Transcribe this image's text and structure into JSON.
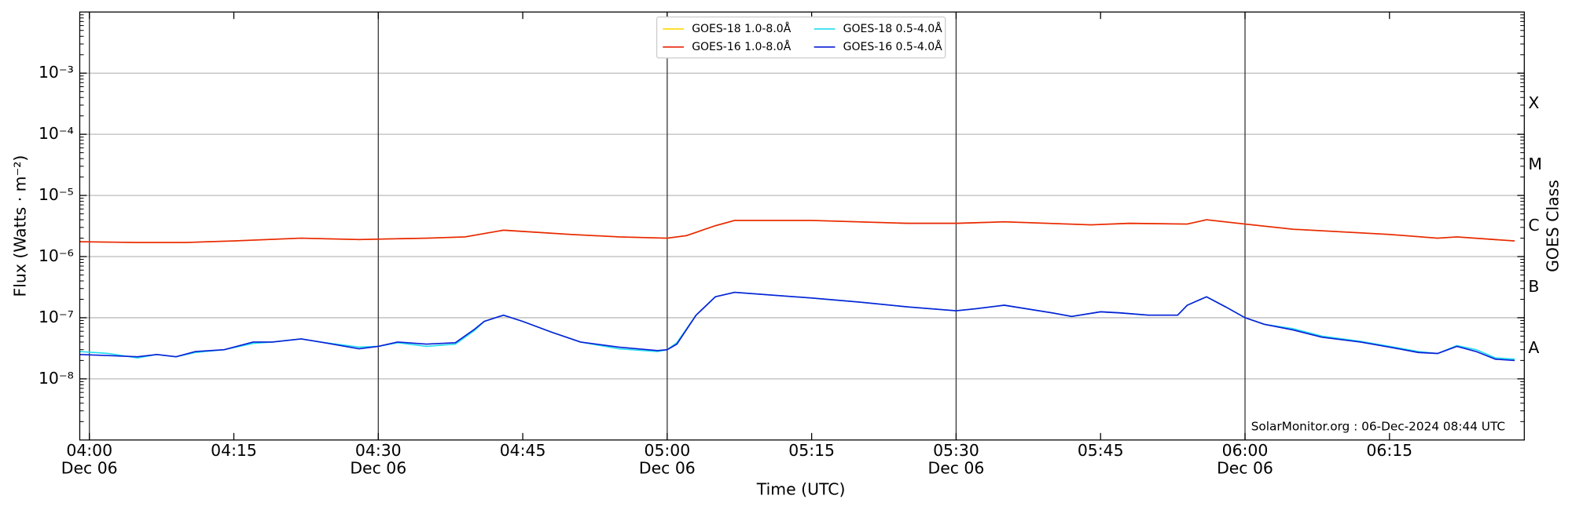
{
  "chart_data": {
    "type": "line",
    "xlabel": "Time (UTC)",
    "ylabel": "Flux (Watts · m⁻²)",
    "y2label": "GOES Class",
    "annotation": "SolarMonitor.org : 06-Dec-2024 08:44 UTC",
    "log_y": true,
    "grid": true,
    "legend": "upper center",
    "xlim": [
      "03:59",
      "06:29"
    ],
    "ylim": [
      1e-09,
      0.01
    ],
    "xticks": [
      {
        "value": "04:00",
        "label": "04:00",
        "date": "Dec 06"
      },
      {
        "value": "04:15",
        "label": "04:15"
      },
      {
        "value": "04:30",
        "label": "04:30",
        "date": "Dec 06"
      },
      {
        "value": "04:45",
        "label": "04:45"
      },
      {
        "value": "05:00",
        "label": "05:00",
        "date": "Dec 06"
      },
      {
        "value": "05:15",
        "label": "05:15"
      },
      {
        "value": "05:30",
        "label": "05:30",
        "date": "Dec 06"
      },
      {
        "value": "05:45",
        "label": "05:45"
      },
      {
        "value": "06:00",
        "label": "06:00",
        "date": "Dec 06"
      },
      {
        "value": "06:15",
        "label": "06:15"
      }
    ],
    "yticks": [
      {
        "value": 1e-08,
        "label": "10⁻⁸"
      },
      {
        "value": 1e-07,
        "label": "10⁻⁷"
      },
      {
        "value": 1e-06,
        "label": "10⁻⁶"
      },
      {
        "value": 1e-05,
        "label": "10⁻⁵"
      },
      {
        "value": 0.0001,
        "label": "10⁻⁴"
      },
      {
        "value": 0.001,
        "label": "10⁻³"
      }
    ],
    "classes": [
      {
        "value": 3.16e-08,
        "label": "A"
      },
      {
        "value": 3.16e-07,
        "label": "B"
      },
      {
        "value": 3.16e-06,
        "label": "C"
      },
      {
        "value": 3.16e-05,
        "label": "M"
      },
      {
        "value": 0.000316,
        "label": "X"
      }
    ],
    "series": [
      {
        "name": "GOES-18 1.0-8.0Å",
        "color": "#ffd700",
        "x": [
          "03:59",
          "04:05",
          "04:10",
          "04:15",
          "04:22",
          "04:28",
          "04:35",
          "04:39",
          "04:43",
          "04:50",
          "04:55",
          "05:00",
          "05:02",
          "05:05",
          "05:07",
          "05:15",
          "05:25",
          "05:30",
          "05:35",
          "05:44",
          "05:48",
          "05:54",
          "05:56",
          "06:00",
          "06:05",
          "06:15",
          "06:20",
          "06:22",
          "06:28"
        ],
        "values": [
          1.75e-06,
          1.7e-06,
          1.7e-06,
          1.8e-06,
          2e-06,
          1.9e-06,
          2e-06,
          2.1e-06,
          2.7e-06,
          2.3e-06,
          2.1e-06,
          2e-06,
          2.2e-06,
          3.2e-06,
          3.9e-06,
          3.9e-06,
          3.5e-06,
          3.5e-06,
          3.7e-06,
          3.3e-06,
          3.5e-06,
          3.4e-06,
          4e-06,
          3.4e-06,
          2.8e-06,
          2.3e-06,
          2e-06,
          2.1e-06,
          1.8e-06
        ]
      },
      {
        "name": "GOES-16 1.0-8.0Å",
        "color": "#e8250c",
        "x": [
          "03:59",
          "04:05",
          "04:10",
          "04:15",
          "04:22",
          "04:28",
          "04:35",
          "04:39",
          "04:43",
          "04:50",
          "04:55",
          "05:00",
          "05:02",
          "05:05",
          "05:07",
          "05:15",
          "05:25",
          "05:30",
          "05:35",
          "05:44",
          "05:48",
          "05:54",
          "05:56",
          "06:00",
          "06:05",
          "06:15",
          "06:20",
          "06:22",
          "06:28"
        ],
        "values": [
          1.75e-06,
          1.7e-06,
          1.7e-06,
          1.8e-06,
          2e-06,
          1.9e-06,
          2e-06,
          2.1e-06,
          2.7e-06,
          2.3e-06,
          2.1e-06,
          2e-06,
          2.2e-06,
          3.2e-06,
          3.9e-06,
          3.9e-06,
          3.5e-06,
          3.5e-06,
          3.7e-06,
          3.3e-06,
          3.5e-06,
          3.4e-06,
          4e-06,
          3.4e-06,
          2.8e-06,
          2.3e-06,
          2e-06,
          2.1e-06,
          1.8e-06
        ]
      },
      {
        "name": "GOES-18 0.5-4.0Å",
        "color": "#22ddee",
        "x": [
          "03:59",
          "04:02",
          "04:05",
          "04:07",
          "04:09",
          "04:11",
          "04:14",
          "04:17",
          "04:19",
          "04:22",
          "04:24",
          "04:28",
          "04:30",
          "04:32",
          "04:35",
          "04:38",
          "04:40",
          "04:41",
          "04:43",
          "04:45",
          "04:48",
          "04:51",
          "04:55",
          "04:59",
          "05:00",
          "05:01",
          "05:03",
          "05:05",
          "05:07",
          "05:10",
          "05:15",
          "05:20",
          "05:25",
          "05:30",
          "05:32",
          "05:35",
          "05:40",
          "05:42",
          "05:45",
          "05:47",
          "05:50",
          "05:53",
          "05:54",
          "05:56",
          "05:58",
          "06:00",
          "06:02",
          "06:05",
          "06:08",
          "06:12",
          "06:15",
          "06:18",
          "06:20",
          "06:22",
          "06:24",
          "06:26",
          "06:28"
        ],
        "values": [
          2.8e-08,
          2.6e-08,
          2.2e-08,
          2.5e-08,
          2.3e-08,
          2.7e-08,
          3e-08,
          3.8e-08,
          4e-08,
          4.5e-08,
          4e-08,
          3.3e-08,
          3.4e-08,
          3.9e-08,
          3.4e-08,
          3.7e-08,
          6.2e-08,
          8.7e-08,
          1.1e-07,
          8.7e-08,
          5.8e-08,
          4e-08,
          3.1e-08,
          2.8e-08,
          3e-08,
          3.9e-08,
          1.1e-07,
          2.2e-07,
          2.6e-07,
          2.4e-07,
          2.1e-07,
          1.8e-07,
          1.5e-07,
          1.3e-07,
          1.4e-07,
          1.6e-07,
          1.2e-07,
          1.05e-07,
          1.25e-07,
          1.2e-07,
          1.1e-07,
          1.1e-07,
          1.6e-07,
          2.2e-07,
          1.5e-07,
          1e-07,
          7.8e-08,
          6.6e-08,
          5e-08,
          4.1e-08,
          3.4e-08,
          2.8e-08,
          2.6e-08,
          3.5e-08,
          3e-08,
          2.2e-08,
          2.1e-08
        ]
      },
      {
        "name": "GOES-16 0.5-4.0Å",
        "color": "#0a1fd6",
        "x": [
          "03:59",
          "04:02",
          "04:05",
          "04:07",
          "04:09",
          "04:11",
          "04:14",
          "04:17",
          "04:19",
          "04:22",
          "04:24",
          "04:28",
          "04:30",
          "04:32",
          "04:35",
          "04:38",
          "04:40",
          "04:41",
          "04:43",
          "04:45",
          "04:48",
          "04:51",
          "04:55",
          "04:59",
          "05:00",
          "05:01",
          "05:03",
          "05:05",
          "05:07",
          "05:10",
          "05:15",
          "05:20",
          "05:25",
          "05:30",
          "05:32",
          "05:35",
          "05:40",
          "05:42",
          "05:45",
          "05:47",
          "05:50",
          "05:53",
          "05:54",
          "05:56",
          "05:58",
          "06:00",
          "06:02",
          "06:05",
          "06:08",
          "06:12",
          "06:15",
          "06:18",
          "06:20",
          "06:22",
          "06:24",
          "06:26",
          "06:28"
        ],
        "values": [
          2.5e-08,
          2.4e-08,
          2.3e-08,
          2.5e-08,
          2.3e-08,
          2.8e-08,
          3e-08,
          4e-08,
          4e-08,
          4.5e-08,
          4e-08,
          3.1e-08,
          3.4e-08,
          4e-08,
          3.7e-08,
          3.9e-08,
          6.5e-08,
          8.7e-08,
          1.1e-07,
          8.7e-08,
          5.8e-08,
          4e-08,
          3.3e-08,
          2.9e-08,
          3e-08,
          3.7e-08,
          1.1e-07,
          2.2e-07,
          2.6e-07,
          2.4e-07,
          2.1e-07,
          1.8e-07,
          1.5e-07,
          1.3e-07,
          1.4e-07,
          1.6e-07,
          1.2e-07,
          1.05e-07,
          1.25e-07,
          1.2e-07,
          1.1e-07,
          1.1e-07,
          1.6e-07,
          2.2e-07,
          1.5e-07,
          1e-07,
          7.8e-08,
          6.3e-08,
          4.8e-08,
          4e-08,
          3.3e-08,
          2.7e-08,
          2.6e-08,
          3.4e-08,
          2.8e-08,
          2.1e-08,
          2e-08
        ]
      }
    ]
  }
}
